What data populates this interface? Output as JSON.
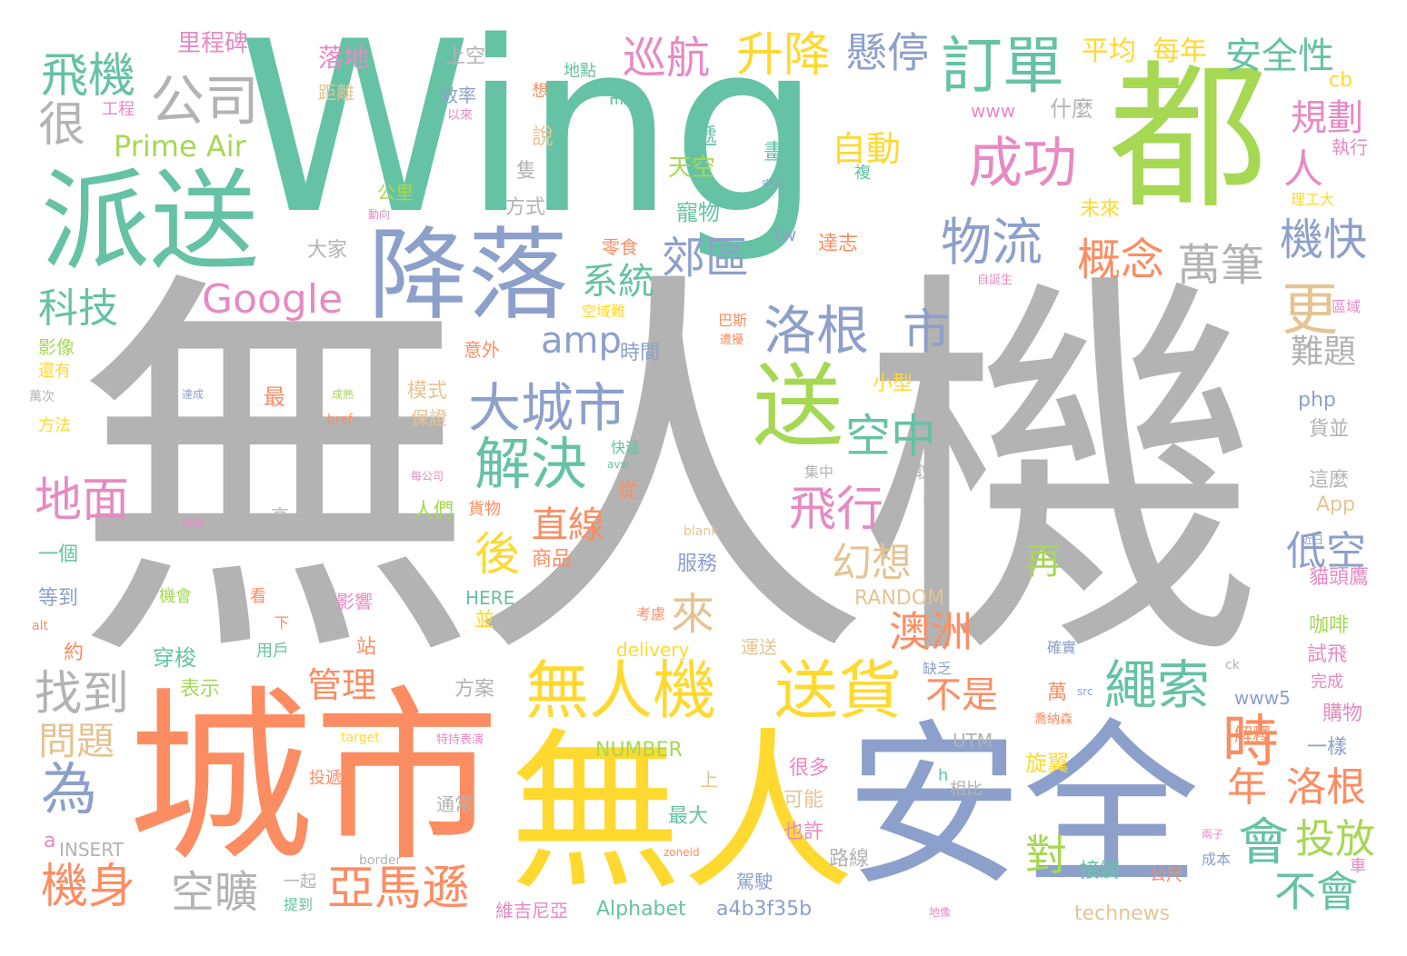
{
  "palette": {
    "teal": "#66c2a5",
    "orange": "#fc8d62",
    "blue": "#8da0cb",
    "pink": "#e78ac3",
    "green": "#a6d854",
    "yellow": "#ffd92f",
    "tan": "#e5c494",
    "gray": "#b3b3b3",
    "background": "#ffffff"
  },
  "words": [
    {
      "t": "無人機",
      "c": "gray"
    },
    {
      "t": "Wing",
      "c": "teal"
    },
    {
      "t": "城市",
      "c": "orange"
    },
    {
      "t": "無人",
      "c": "yellow"
    },
    {
      "t": "安全",
      "c": "blue"
    },
    {
      "t": "都",
      "c": "green"
    },
    {
      "t": "派送",
      "c": "teal"
    },
    {
      "t": "降落",
      "c": "blue"
    },
    {
      "t": "送",
      "c": "green"
    },
    {
      "t": "無人機",
      "c": "yellow"
    },
    {
      "t": "送貨",
      "c": "yellow"
    },
    {
      "t": "飛機",
      "c": "teal"
    },
    {
      "t": "公司",
      "c": "gray"
    },
    {
      "t": "很",
      "c": "gray"
    },
    {
      "t": "訂單",
      "c": "teal"
    },
    {
      "t": "成功",
      "c": "pink"
    },
    {
      "t": "升降",
      "c": "yellow"
    },
    {
      "t": "懸停",
      "c": "blue"
    },
    {
      "t": "巡航",
      "c": "pink"
    },
    {
      "t": "物流",
      "c": "blue"
    },
    {
      "t": "洛根",
      "c": "blue"
    },
    {
      "t": "市",
      "c": "blue"
    },
    {
      "t": "大城市",
      "c": "blue"
    },
    {
      "t": "解決",
      "c": "teal"
    },
    {
      "t": "空中",
      "c": "teal"
    },
    {
      "t": "飛行",
      "c": "pink"
    },
    {
      "t": "概念",
      "c": "orange"
    },
    {
      "t": "萬筆",
      "c": "gray"
    },
    {
      "t": "機快",
      "c": "blue"
    },
    {
      "t": "繩索",
      "c": "teal"
    },
    {
      "t": "時",
      "c": "orange"
    },
    {
      "t": "會",
      "c": "teal"
    },
    {
      "t": "地面",
      "c": "pink"
    },
    {
      "t": "找到",
      "c": "gray"
    },
    {
      "t": "為",
      "c": "blue"
    },
    {
      "t": "機身",
      "c": "orange"
    },
    {
      "t": "空曠",
      "c": "gray"
    },
    {
      "t": "亞馬遜",
      "c": "orange"
    },
    {
      "t": "澳洲",
      "c": "orange"
    },
    {
      "t": "不是",
      "c": "orange"
    },
    {
      "t": "不會",
      "c": "teal"
    },
    {
      "t": "年",
      "c": "orange"
    },
    {
      "t": "洛根",
      "c": "orange"
    },
    {
      "t": "投放",
      "c": "green"
    },
    {
      "t": "Google",
      "c": "pink"
    },
    {
      "t": "Prime Air",
      "c": "green"
    },
    {
      "t": "科技",
      "c": "teal"
    },
    {
      "t": "郊區",
      "c": "blue"
    },
    {
      "t": "系統",
      "c": "teal"
    },
    {
      "t": "自動",
      "c": "yellow"
    },
    {
      "t": "規劃",
      "c": "pink"
    },
    {
      "t": "人",
      "c": "pink"
    },
    {
      "t": "更",
      "c": "tan"
    },
    {
      "t": "後",
      "c": "yellow"
    },
    {
      "t": "直線",
      "c": "orange"
    },
    {
      "t": "幻想",
      "c": "tan"
    },
    {
      "t": "來",
      "c": "tan"
    },
    {
      "t": "低空",
      "c": "blue"
    },
    {
      "t": "管理",
      "c": "orange"
    },
    {
      "t": "問題",
      "c": "tan"
    },
    {
      "t": "對",
      "c": "green"
    },
    {
      "t": "再",
      "c": "green"
    },
    {
      "t": "難題",
      "c": "gray"
    },
    {
      "t": "amp",
      "c": "blue"
    },
    {
      "t": "安全性",
      "c": "teal"
    },
    {
      "t": "每年",
      "c": "yellow"
    },
    {
      "t": "平均",
      "c": "yellow"
    },
    {
      "t": "里程碑",
      "c": "pink"
    },
    {
      "t": "落地",
      "c": "pink"
    },
    {
      "t": "上空",
      "c": "gray"
    },
    {
      "t": "距離",
      "c": "tan"
    },
    {
      "t": "效率",
      "c": "blue"
    },
    {
      "t": "以來",
      "c": "pink"
    },
    {
      "t": "地點",
      "c": "teal"
    },
    {
      "t": "想",
      "c": "orange"
    },
    {
      "t": "工程",
      "c": "pink"
    },
    {
      "t": "需",
      "c": "teal"
    },
    {
      "t": "什麼",
      "c": "gray"
    },
    {
      "t": "www",
      "c": "pink"
    },
    {
      "t": "cb",
      "c": "yellow"
    },
    {
      "t": "執行",
      "c": "pink"
    },
    {
      "t": "說",
      "c": "tan"
    },
    {
      "t": "遞",
      "c": "teal"
    },
    {
      "t": "天空",
      "c": "green"
    },
    {
      "t": "畫",
      "c": "teal"
    },
    {
      "t": "空拍",
      "c": "blue"
    },
    {
      "t": "複",
      "c": "teal"
    },
    {
      "t": "隻",
      "c": "gray"
    },
    {
      "t": "公里",
      "c": "green"
    },
    {
      "t": "方式",
      "c": "gray"
    },
    {
      "t": "寵物",
      "c": "teal"
    },
    {
      "t": "未來",
      "c": "yellow"
    },
    {
      "t": "理工大",
      "c": "yellow"
    },
    {
      "t": "大家",
      "c": "gray"
    },
    {
      "t": "tw",
      "c": "blue"
    },
    {
      "t": "達志",
      "c": "orange"
    },
    {
      "t": "零食",
      "c": "orange"
    },
    {
      "t": "自誕生",
      "c": "pink"
    },
    {
      "t": "區域",
      "c": "pink"
    },
    {
      "t": "影像",
      "c": "green"
    },
    {
      "t": "還有",
      "c": "yellow"
    },
    {
      "t": "萬次",
      "c": "gray"
    },
    {
      "t": "方法",
      "c": "yellow"
    },
    {
      "t": "意外",
      "c": "orange"
    },
    {
      "t": "空域難",
      "c": "yellow"
    },
    {
      "t": "巴斯",
      "c": "orange"
    },
    {
      "t": "遭擾",
      "c": "orange"
    },
    {
      "t": "時間",
      "c": "blue"
    },
    {
      "t": "最",
      "c": "orange"
    },
    {
      "t": "小型",
      "c": "yellow"
    },
    {
      "t": "模式",
      "c": "tan"
    },
    {
      "t": "保證",
      "c": "tan"
    },
    {
      "t": "php",
      "c": "blue"
    },
    {
      "t": "貨並",
      "c": "gray"
    },
    {
      "t": "這麼",
      "c": "gray"
    },
    {
      "t": "App",
      "c": "tan"
    },
    {
      "t": "貓頭鷹",
      "c": "pink"
    },
    {
      "t": "咖啡",
      "c": "green"
    },
    {
      "t": "試飛",
      "c": "pink"
    },
    {
      "t": "完成",
      "c": "pink"
    },
    {
      "t": "購物",
      "c": "pink"
    },
    {
      "t": "一樣",
      "c": "blue"
    },
    {
      "t": "旋翼",
      "c": "yellow"
    },
    {
      "t": "車",
      "c": "pink"
    },
    {
      "t": "成本",
      "c": "blue"
    },
    {
      "t": "公尺",
      "c": "orange"
    },
    {
      "t": "接觸",
      "c": "teal"
    },
    {
      "t": "technews",
      "c": "tan"
    },
    {
      "t": "Alphabet",
      "c": "teal"
    },
    {
      "t": "a4b3f35b",
      "c": "blue"
    },
    {
      "t": "維吉尼亞",
      "c": "pink"
    },
    {
      "t": "駕駛",
      "c": "blue"
    },
    {
      "t": "路線",
      "c": "gray"
    },
    {
      "t": "也許",
      "c": "pink"
    },
    {
      "t": "可能",
      "c": "tan"
    },
    {
      "t": "很多",
      "c": "pink"
    },
    {
      "t": "最大",
      "c": "teal"
    },
    {
      "t": "上",
      "c": "tan"
    },
    {
      "t": "NUMBER",
      "c": "green"
    },
    {
      "t": "通常",
      "c": "gray"
    },
    {
      "t": "相比",
      "c": "gray"
    },
    {
      "t": "UTM",
      "c": "gray"
    },
    {
      "t": "方案",
      "c": "gray"
    },
    {
      "t": "並",
      "c": "yellow"
    },
    {
      "t": "HERE",
      "c": "teal"
    },
    {
      "t": "服務",
      "c": "blue"
    },
    {
      "t": "商品",
      "c": "orange"
    },
    {
      "t": "貨物",
      "c": "orange"
    },
    {
      "t": "人們",
      "c": "green"
    },
    {
      "t": "從",
      "c": "orange"
    },
    {
      "t": "快遞",
      "c": "teal"
    },
    {
      "t": "集中",
      "c": "gray"
    },
    {
      "t": "取貨",
      "c": "gray"
    },
    {
      "t": "img",
      "c": "gray"
    },
    {
      "t": "blank",
      "c": "tan"
    },
    {
      "t": "RANDOM",
      "c": "tan"
    },
    {
      "t": "delivery",
      "c": "yellow"
    },
    {
      "t": "運送",
      "c": "tan"
    },
    {
      "t": "考慮",
      "c": "orange"
    },
    {
      "t": "缺乏",
      "c": "blue"
    },
    {
      "t": "確實",
      "c": "blue"
    },
    {
      "t": "萬",
      "c": "orange"
    },
    {
      "t": "喬納森",
      "c": "orange"
    },
    {
      "t": "www5",
      "c": "blue"
    },
    {
      "t": "解釋",
      "c": "orange"
    },
    {
      "t": "ck",
      "c": "gray"
    },
    {
      "t": "src",
      "c": "blue"
    },
    {
      "t": "近日",
      "c": "blue"
    },
    {
      "t": "穿梭",
      "c": "teal"
    },
    {
      "t": "表示",
      "c": "green"
    },
    {
      "t": "用戶",
      "c": "teal"
    },
    {
      "t": "站",
      "c": "orange"
    },
    {
      "t": "一起",
      "c": "gray"
    },
    {
      "t": "提到",
      "c": "teal"
    },
    {
      "t": "投遞",
      "c": "orange"
    },
    {
      "t": "INSERT",
      "c": "gray"
    },
    {
      "t": "a",
      "c": "pink"
    },
    {
      "t": "border",
      "c": "gray"
    },
    {
      "t": "zoneid",
      "c": "orange"
    },
    {
      "t": "一個",
      "c": "teal"
    },
    {
      "t": "等到",
      "c": "blue"
    },
    {
      "t": "約",
      "c": "orange"
    },
    {
      "t": "alt",
      "c": "orange"
    },
    {
      "t": "機會",
      "c": "green"
    },
    {
      "t": "看",
      "c": "orange"
    },
    {
      "t": "影響",
      "c": "pink"
    },
    {
      "t": "下",
      "c": "orange"
    },
    {
      "t": "高",
      "c": "gray"
    },
    {
      "t": "每公司",
      "c": "pink"
    },
    {
      "t": "首級",
      "c": "pink"
    },
    {
      "t": "成熟",
      "c": "green"
    },
    {
      "t": "href",
      "c": "orange"
    },
    {
      "t": "達成",
      "c": "blue"
    },
    {
      "t": "avw",
      "c": "teal"
    },
    {
      "t": "target",
      "c": "yellow"
    },
    {
      "t": "特持表演",
      "c": "pink"
    },
    {
      "t": "兩子",
      "c": "pink"
    },
    {
      "t": "地像",
      "c": "pink"
    },
    {
      "t": "動向",
      "c": "pink"
    },
    {
      "t": "h",
      "c": "teal"
    }
  ]
}
